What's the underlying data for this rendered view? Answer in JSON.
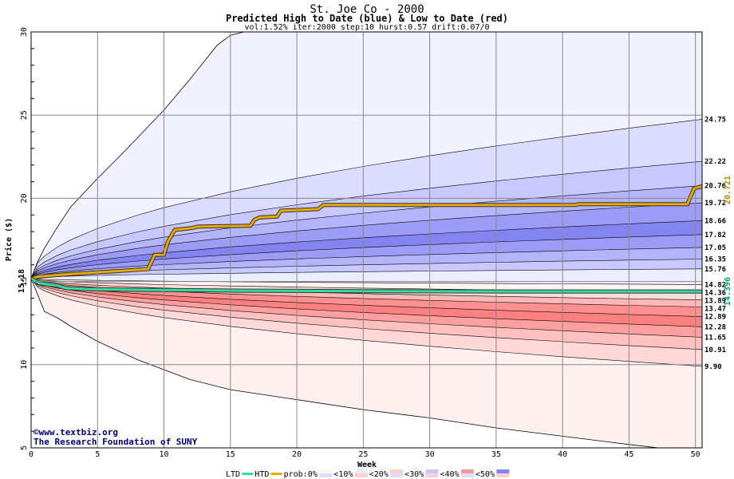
{
  "chart_data": {
    "type": "line",
    "title": "St. Joe Co - 2000",
    "subtitle": "Predicted High to Date (blue) &  Low to Date (red)",
    "params": "vol:1.52% iter:2000 step:10 hurst:0.57 drift:0.07/0",
    "xlabel": "Week",
    "ylabel": "Price ($)",
    "xlim": [
      0,
      50.5
    ],
    "ylim": [
      5,
      30
    ],
    "xticks": [
      0,
      5,
      10,
      15,
      20,
      25,
      30,
      35,
      40,
      45,
      50
    ],
    "yticks": [
      5,
      10,
      15,
      20,
      25,
      30
    ],
    "start_price": "15.18",
    "end_high": "20.721",
    "end_low": "14.396",
    "high_quantiles": [
      "24.75",
      "22.22",
      "20.76",
      "19.72",
      "18.66",
      "17.82",
      "17.05",
      "16.35",
      "15.76",
      "14.82"
    ],
    "low_quantiles": [
      "14.36",
      "13.89",
      "13.47",
      "12.89",
      "12.28",
      "11.65",
      "10.91",
      "9.90"
    ],
    "bands": [
      {
        "lo": 24.75,
        "hi": 30.0,
        "color": "#f2f2ff",
        "shape": "upper"
      },
      {
        "lo": 22.22,
        "hi": 24.75,
        "color": "#dcdcff",
        "shape": "upper"
      },
      {
        "lo": 20.76,
        "hi": 22.22,
        "color": "#c8c8ff",
        "shape": "upper"
      },
      {
        "lo": 19.72,
        "hi": 20.76,
        "color": "#b4b4fb",
        "shape": "upper"
      },
      {
        "lo": 18.66,
        "hi": 19.72,
        "color": "#9c9cf6",
        "shape": "upper"
      },
      {
        "lo": 17.82,
        "hi": 18.66,
        "color": "#8484f0",
        "shape": "upper"
      },
      {
        "lo": 17.05,
        "hi": 17.82,
        "color": "#9c9cf6",
        "shape": "upper"
      },
      {
        "lo": 16.35,
        "hi": 17.05,
        "color": "#b4b4fb",
        "shape": "upper"
      },
      {
        "lo": 15.76,
        "hi": 16.35,
        "color": "#c8c8ff",
        "shape": "upper"
      },
      {
        "lo": 14.82,
        "hi": 15.76,
        "color": "#ececff",
        "shape": "upper"
      },
      {
        "lo": 14.36,
        "hi": 14.82,
        "color": "#fff2f2",
        "shape": "lower"
      },
      {
        "lo": 13.89,
        "hi": 14.36,
        "color": "#ffdcdc",
        "shape": "lower"
      },
      {
        "lo": 13.47,
        "hi": 13.89,
        "color": "#ffb8b8",
        "shape": "lower"
      },
      {
        "lo": 12.89,
        "hi": 13.47,
        "color": "#ff9090",
        "shape": "lower"
      },
      {
        "lo": 12.28,
        "hi": 12.89,
        "color": "#ff8080",
        "shape": "lower"
      },
      {
        "lo": 11.65,
        "hi": 12.28,
        "color": "#ffa0a0",
        "shape": "lower"
      },
      {
        "lo": 10.91,
        "hi": 11.65,
        "color": "#ffc0c0",
        "shape": "lower"
      },
      {
        "lo": 9.9,
        "hi": 10.91,
        "color": "#ffd8d8",
        "shape": "lower"
      },
      {
        "lo": 5.0,
        "hi": 9.9,
        "color": "#fff0f0",
        "shape": "lower"
      }
    ],
    "envelope_upper": [
      [
        0,
        15.18
      ],
      [
        0.5,
        16.2
      ],
      [
        1,
        17.0
      ],
      [
        2,
        18.3
      ],
      [
        3,
        19.5
      ],
      [
        5,
        21.2
      ],
      [
        7,
        22.8
      ],
      [
        10,
        25.3
      ],
      [
        12,
        27.2
      ],
      [
        14,
        29.2
      ],
      [
        15,
        29.8
      ],
      [
        16,
        30.0
      ],
      [
        50.5,
        30.0
      ]
    ],
    "envelope_lower": [
      [
        0,
        15.18
      ],
      [
        0.5,
        14.2
      ],
      [
        1,
        13.2
      ],
      [
        2,
        12.8
      ],
      [
        3,
        12.3
      ],
      [
        5,
        11.4
      ],
      [
        8,
        10.3
      ],
      [
        10,
        9.7
      ],
      [
        12,
        9.1
      ],
      [
        15,
        8.5
      ],
      [
        20,
        7.9
      ],
      [
        25,
        7.3
      ],
      [
        30,
        6.8
      ],
      [
        35,
        6.2
      ],
      [
        40,
        5.7
      ],
      [
        45,
        5.2
      ],
      [
        50.5,
        4.7
      ]
    ],
    "series": [
      {
        "name": "HTD",
        "color": "#e8a800",
        "values": [
          [
            0,
            15.18
          ],
          [
            0.6,
            15.3
          ],
          [
            3,
            15.45
          ],
          [
            6,
            15.6
          ],
          [
            8.8,
            15.75
          ],
          [
            9.3,
            16.6
          ],
          [
            10,
            16.6
          ],
          [
            10.3,
            17.4
          ],
          [
            10.8,
            18.1
          ],
          [
            12,
            18.2
          ],
          [
            12.6,
            18.3
          ],
          [
            16.5,
            18.35
          ],
          [
            16.8,
            18.7
          ],
          [
            17.2,
            18.85
          ],
          [
            18.5,
            18.9
          ],
          [
            18.8,
            19.25
          ],
          [
            21.6,
            19.35
          ],
          [
            22,
            19.6
          ],
          [
            41,
            19.6
          ],
          [
            41.2,
            19.65
          ],
          [
            49.4,
            19.65
          ],
          [
            49.9,
            20.6
          ],
          [
            50.5,
            20.72
          ]
        ]
      },
      {
        "name": "LTD",
        "color": "#30e0a0",
        "values": [
          [
            0,
            15.18
          ],
          [
            0.6,
            14.9
          ],
          [
            2,
            14.75
          ],
          [
            2.6,
            14.6
          ],
          [
            4,
            14.55
          ],
          [
            8,
            14.5
          ],
          [
            16,
            14.45
          ],
          [
            25,
            14.42
          ],
          [
            35,
            14.4
          ],
          [
            45,
            14.4
          ],
          [
            50.5,
            14.4
          ]
        ]
      }
    ],
    "legend": {
      "items": [
        "LTD",
        "HTD",
        "prob:0%",
        "<10%",
        "<20%",
        "<30%",
        "<40%",
        "<50%"
      ],
      "prob_colors": [
        "#fff4f4",
        "#ececff",
        "#ffd0d0",
        "#c8c8ff",
        "#ff9898",
        "#8484f0"
      ]
    },
    "watermark": [
      "©www.textbiz.org",
      "The Research Foundation of SUNY"
    ]
  }
}
